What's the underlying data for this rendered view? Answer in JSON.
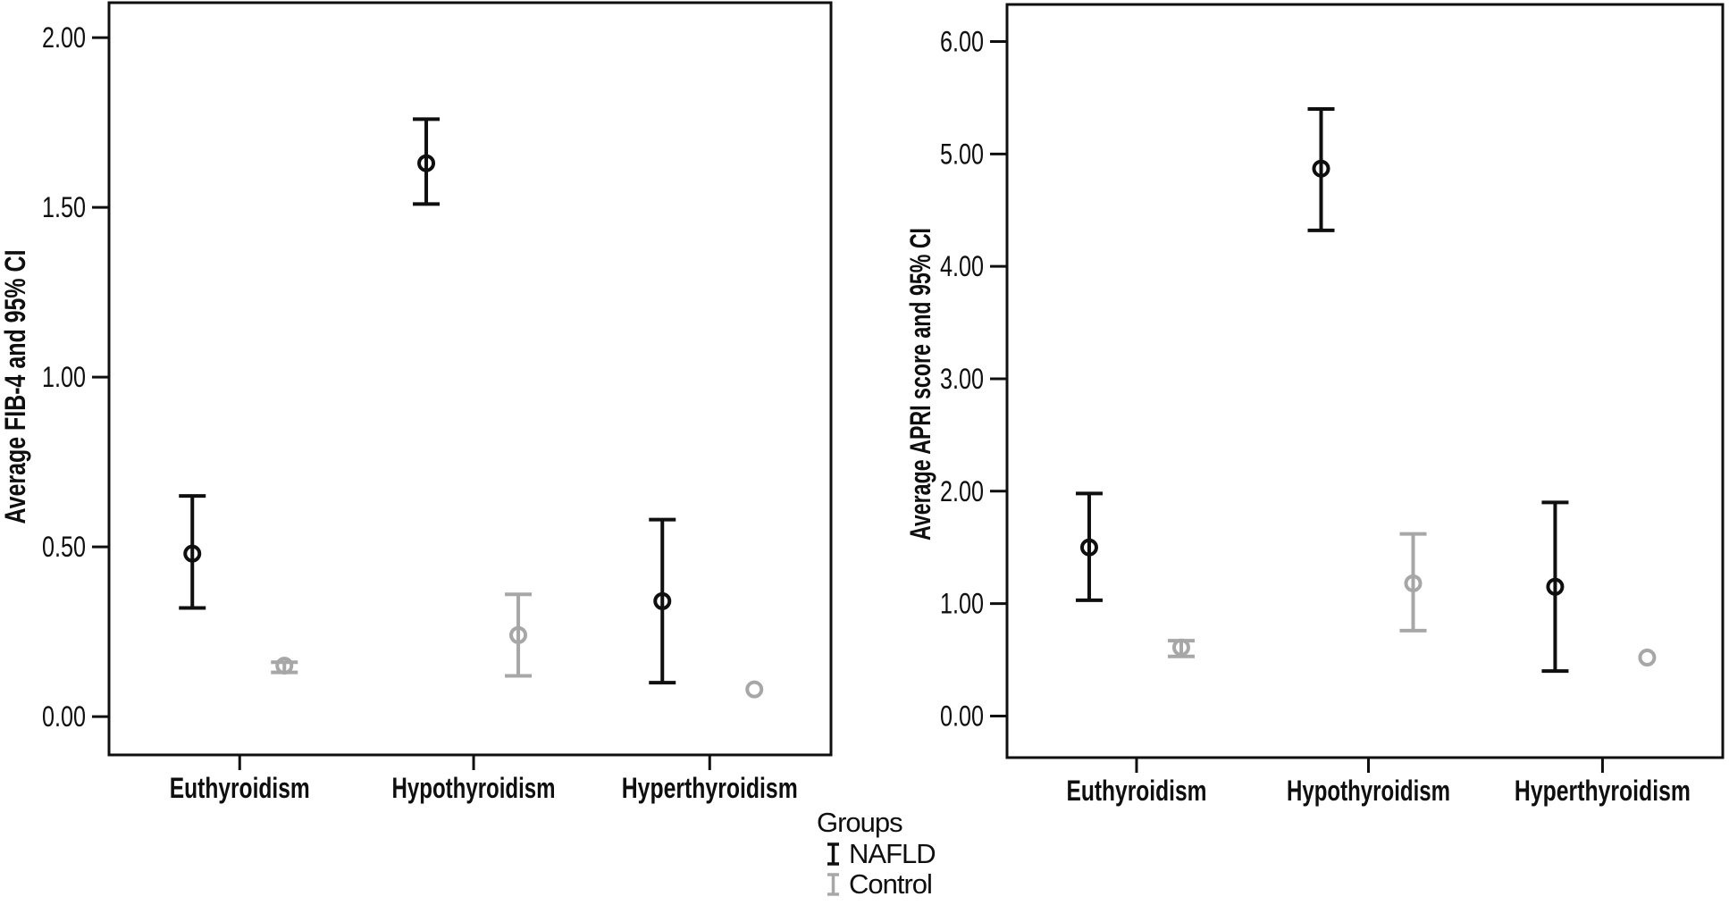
{
  "figure": {
    "background": "#ffffff"
  },
  "colors": {
    "frame": "#0f0f0f",
    "nafld": "#0f0f0f",
    "control": "#a7a7a7"
  },
  "legend": {
    "title": "Groups",
    "items": [
      {
        "label": "NAFLD",
        "series": "nafld",
        "color": "#0f0f0f"
      },
      {
        "label": "Control",
        "series": "control",
        "color": "#a7a7a7"
      }
    ]
  },
  "chart_data": [
    {
      "type": "errorbar",
      "id": "fib4",
      "title": "",
      "xlabel": "",
      "ylabel": "Average FIB-4 and 95% CI",
      "categories": [
        "Euthyroidism",
        "Hypothyroidism",
        "Hyperthyroidism"
      ],
      "ytick_values": [
        0.0,
        0.5,
        1.0,
        1.5,
        2.0
      ],
      "ytick_labels": [
        "0.00",
        "0.50",
        "1.00",
        "1.50",
        "2.00"
      ],
      "ylim": [
        -0.113,
        2.103
      ],
      "grid": false,
      "legend_position": "bottom-center-shared",
      "series": [
        {
          "name": "NAFLD",
          "color": "#0f0f0f",
          "means": [
            0.48,
            1.63,
            0.34
          ],
          "ci_low": [
            0.32,
            1.51,
            0.1
          ],
          "ci_high": [
            0.65,
            1.76,
            0.58
          ]
        },
        {
          "name": "Control",
          "color": "#a7a7a7",
          "means": [
            0.15,
            0.24,
            0.08
          ],
          "ci_low": [
            0.13,
            0.12,
            0.08
          ],
          "ci_high": [
            0.16,
            0.36,
            0.08
          ]
        }
      ]
    },
    {
      "type": "errorbar",
      "id": "apri",
      "title": "",
      "xlabel": "",
      "ylabel": "Average APRI score and 95% CI",
      "categories": [
        "Euthyroidism",
        "Hypothyroidism",
        "Hyperthyroidism"
      ],
      "ytick_values": [
        0.0,
        1.0,
        2.0,
        3.0,
        4.0,
        5.0,
        6.0
      ],
      "ytick_labels": [
        "0.00",
        "1.00",
        "2.00",
        "3.00",
        "4.00",
        "5.00",
        "6.00"
      ],
      "ylim": [
        -0.37,
        6.33
      ],
      "grid": false,
      "legend_position": "bottom-center-shared",
      "series": [
        {
          "name": "NAFLD",
          "color": "#0f0f0f",
          "means": [
            1.5,
            4.87,
            1.15
          ],
          "ci_low": [
            1.03,
            4.32,
            0.4
          ],
          "ci_high": [
            1.98,
            5.4,
            1.9
          ]
        },
        {
          "name": "Control",
          "color": "#a7a7a7",
          "means": [
            0.61,
            1.18,
            0.52
          ],
          "ci_low": [
            0.53,
            0.76,
            0.52
          ],
          "ci_high": [
            0.67,
            1.62,
            0.52
          ]
        }
      ]
    }
  ]
}
